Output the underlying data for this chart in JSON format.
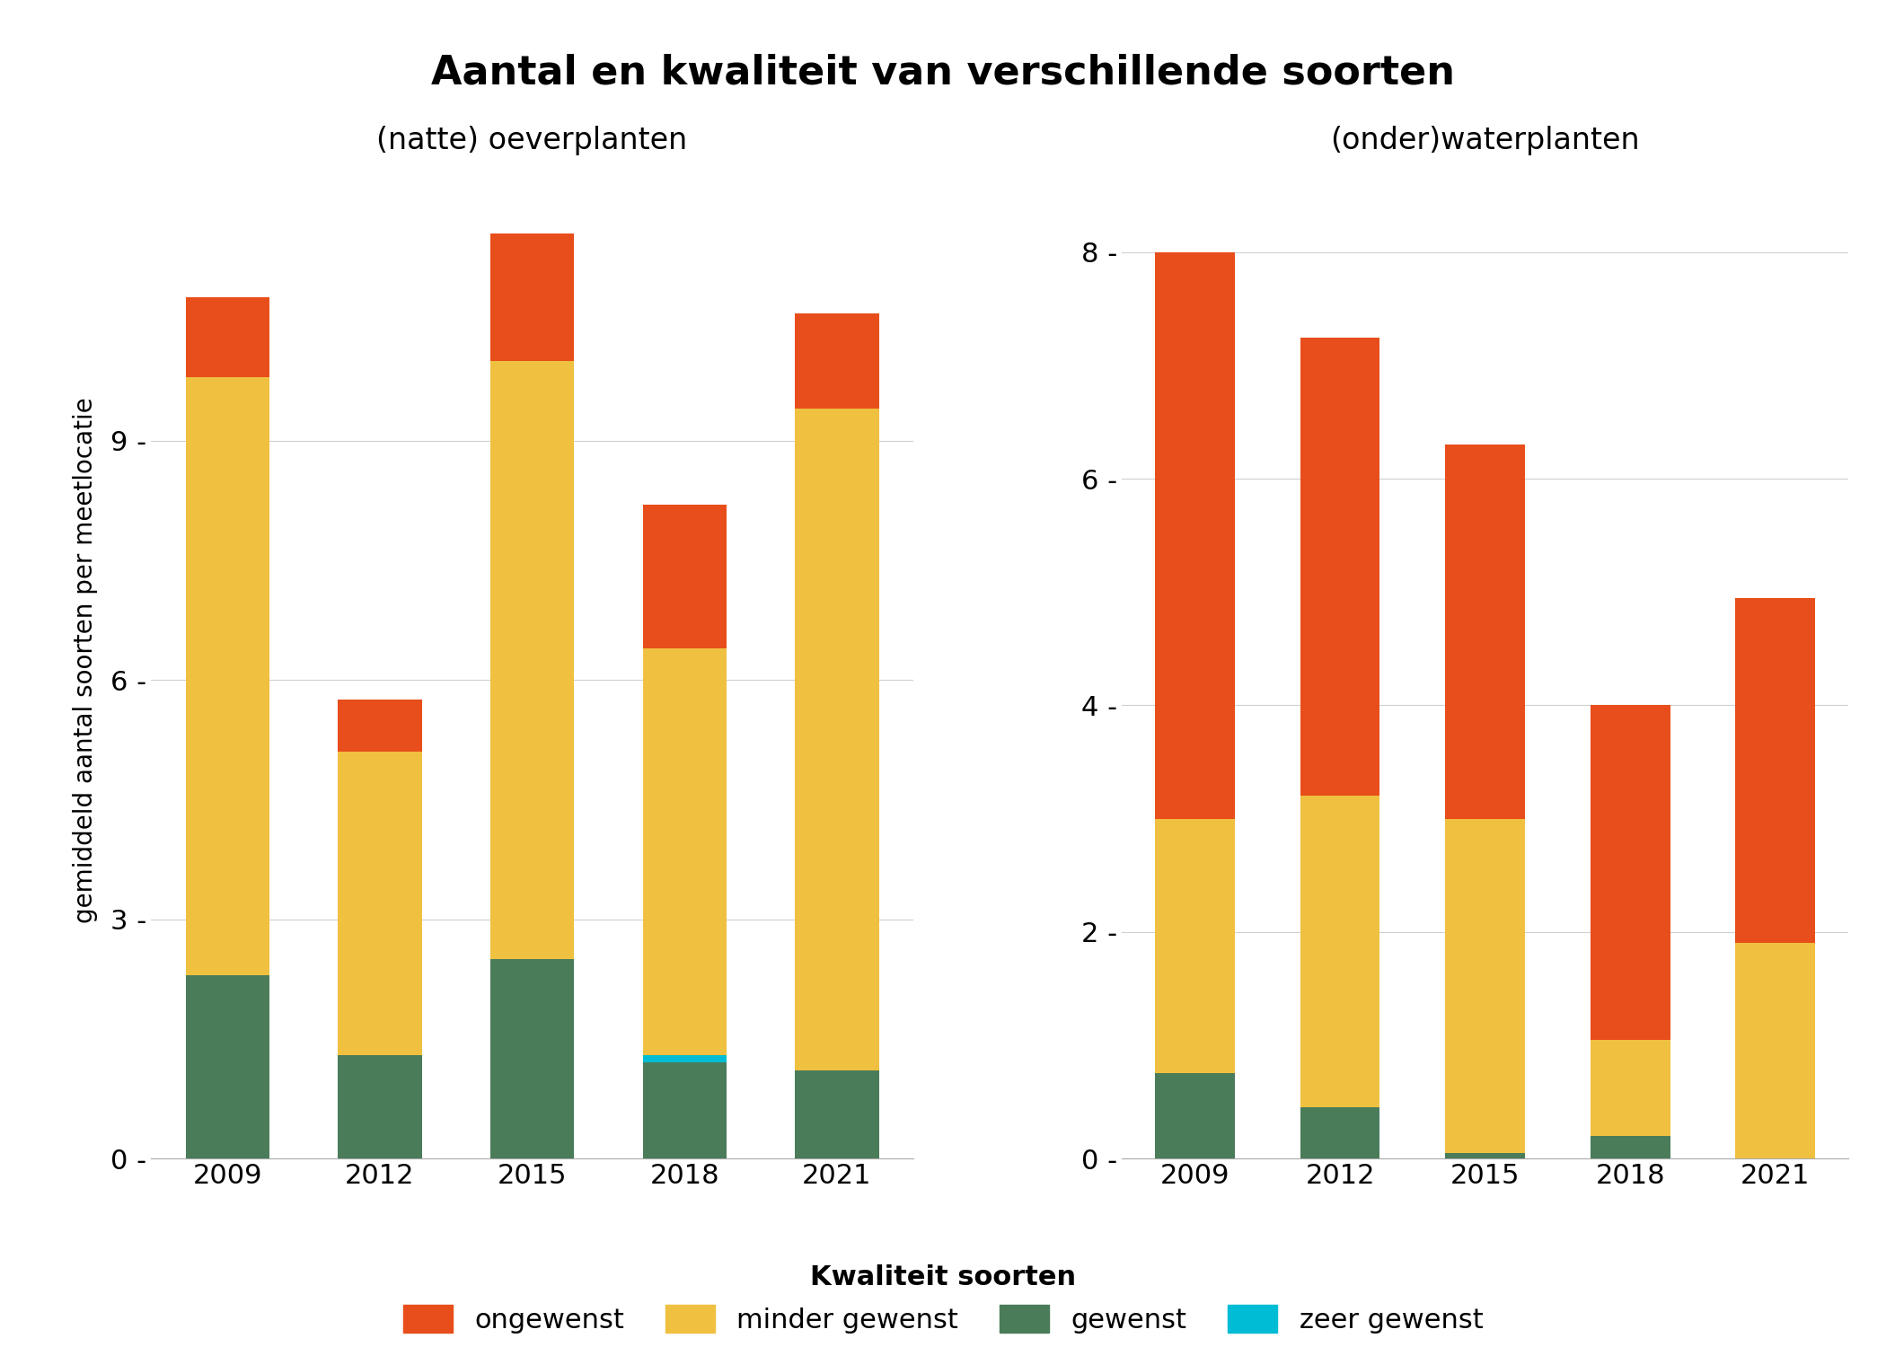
{
  "title": "Aantal en kwaliteit van verschillende soorten",
  "ylabel": "gemiddeld aantal soorten per meetlocatie",
  "left_subtitle": "(natte) oeverplanten",
  "right_subtitle": "(onder)waterplanten",
  "years": [
    2009,
    2012,
    2015,
    2018,
    2021
  ],
  "left": {
    "gewenst": [
      2.3,
      1.3,
      2.5,
      1.2,
      1.1
    ],
    "zeer_gewenst": [
      0.0,
      0.0,
      0.0,
      0.1,
      0.0
    ],
    "minder_gewenst": [
      7.5,
      3.8,
      7.5,
      5.1,
      8.3
    ],
    "ongewenst": [
      1.0,
      0.65,
      1.6,
      1.8,
      1.2
    ]
  },
  "right": {
    "gewenst": [
      0.75,
      0.45,
      0.05,
      0.2,
      0.0
    ],
    "zeer_gewenst": [
      0.0,
      0.0,
      0.0,
      0.0,
      0.0
    ],
    "minder_gewenst": [
      2.25,
      2.75,
      2.95,
      0.85,
      1.9
    ],
    "ongewenst": [
      5.0,
      4.05,
      3.3,
      2.95,
      3.05
    ]
  },
  "colors": {
    "gewenst": "#4a7c59",
    "zeer_gewenst": "#00bcd4",
    "minder_gewenst": "#f0c040",
    "ongewenst": "#e84e1b"
  },
  "left_ylim": [
    0,
    12.5
  ],
  "right_ylim": [
    0,
    8.8
  ],
  "left_yticks": [
    0,
    3,
    6,
    9
  ],
  "right_yticks": [
    0,
    2,
    4,
    6,
    8
  ],
  "bar_width": 0.55,
  "legend_labels": {
    "ongewenst": "ongewenst",
    "minder_gewenst": "minder gewenst",
    "gewenst": "gewenst",
    "zeer_gewenst": "zeer gewenst"
  },
  "legend_title": "Kwaliteit soorten",
  "background_color": "#ffffff",
  "grid_color": "#d0d0d0"
}
